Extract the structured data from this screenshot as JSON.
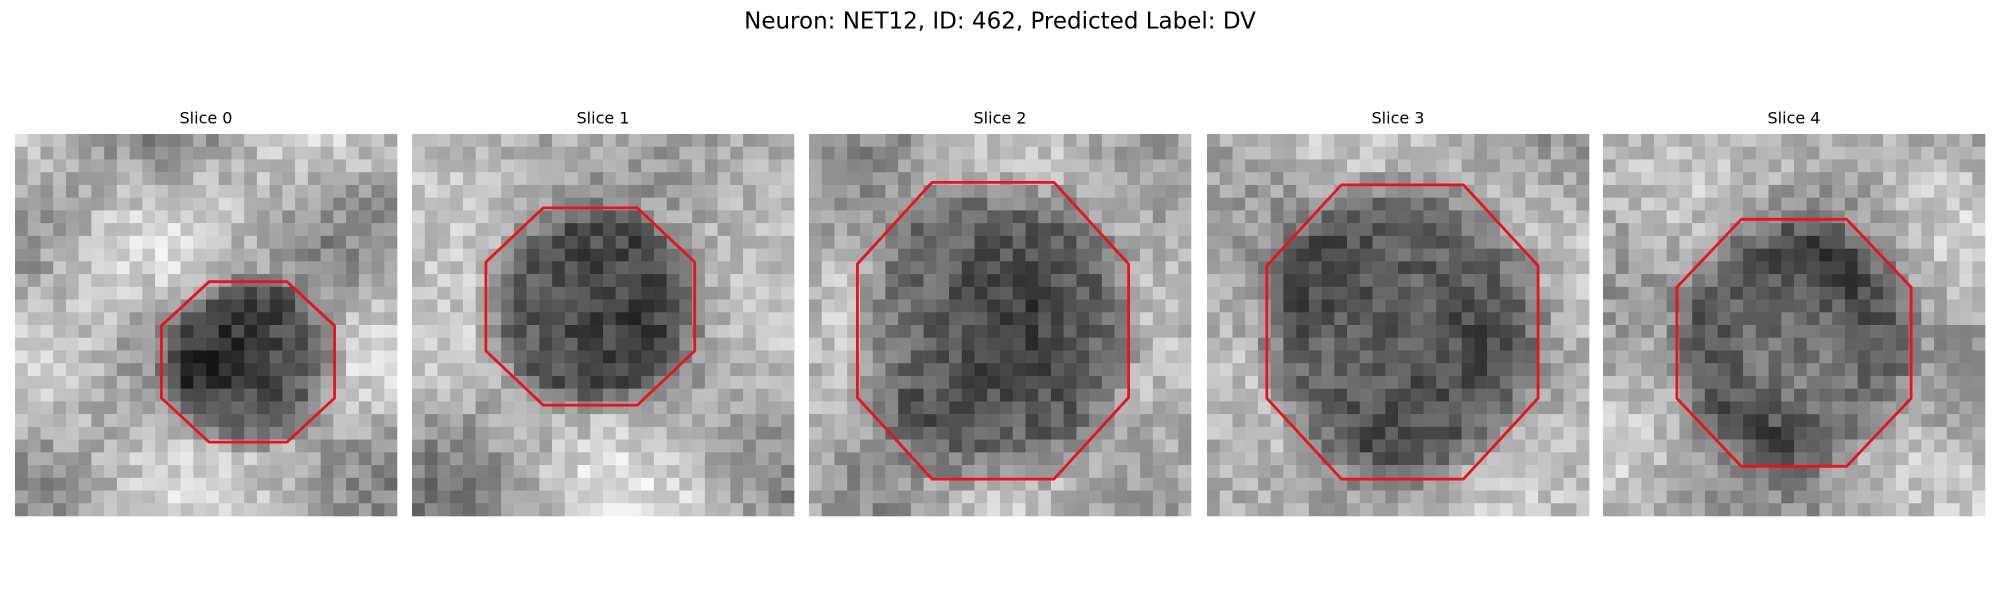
{
  "title": "Neuron: NET12, ID: 462, Predicted Label: DV",
  "panels": [
    {
      "title": "Slice 0"
    },
    {
      "title": "Slice 1"
    },
    {
      "title": "Slice 2"
    },
    {
      "title": "Slice 3"
    },
    {
      "title": "Slice 4"
    }
  ]
}
